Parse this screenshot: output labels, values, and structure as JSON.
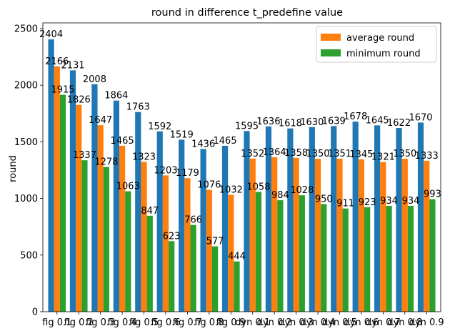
{
  "chart_data": {
    "type": "bar",
    "title": "round in difference t_predefine value",
    "xlabel": "",
    "ylabel": "round",
    "ylim": [
      0,
      2550
    ],
    "yticks": [
      0,
      500,
      1000,
      1500,
      2000,
      2500
    ],
    "grid": false,
    "legend_position": "top-right",
    "categories": [
      "fig 0.1",
      "fig 0.2",
      "fig 0.3",
      "fig 0.4",
      "fig 0.5",
      "fig 0.6",
      "fig 0.7",
      "fig 0.8",
      "fig 0.9",
      "dyn 0.1",
      "dyn 0.2",
      "dyn 0.3",
      "dyn 0.4",
      "dyn 0.5",
      "dyn 0.6",
      "dyn 0.7",
      "dyn 0.8",
      "dyn 0.9"
    ],
    "category_tick_labels": [
      "fig 0.1",
      "fig 0.2",
      "fig 0.3",
      "fig 0.4",
      "fig 0.5",
      "fig 0.6",
      "fig 0.7",
      "fig 0.8",
      "fig 0.9",
      "dyn 0.1",
      "dyn 0.2",
      "dyn 0.3",
      "dyn 0.4",
      "dyn 0.5",
      "dyn 0.6",
      "dyn 0.7",
      "dyn 0.8",
      "dyn 0.9"
    ],
    "series": [
      {
        "values": [
          2404,
          2131,
          2008,
          1864,
          1763,
          1592,
          1519,
          1436,
          1465,
          1595,
          1636,
          1618,
          1630,
          1639,
          1678,
          1645,
          1622,
          1670
        ],
        "color": "#1f77b4"
      },
      {
        "name": "average round",
        "values": [
          2166,
          1826,
          1647,
          1465,
          1323,
          1203,
          1179,
          1076,
          1032,
          1352,
          1364,
          1358,
          1350,
          1351,
          1345,
          1321,
          1350,
          1333
        ],
        "color": "#ff7f0e"
      },
      {
        "name": "minimum round",
        "values": [
          1915,
          1337,
          1278,
          1063,
          847,
          623,
          766,
          577,
          444,
          1058,
          984,
          1028,
          950,
          911,
          923,
          934,
          934,
          993
        ],
        "color": "#2ca02c"
      }
    ]
  }
}
